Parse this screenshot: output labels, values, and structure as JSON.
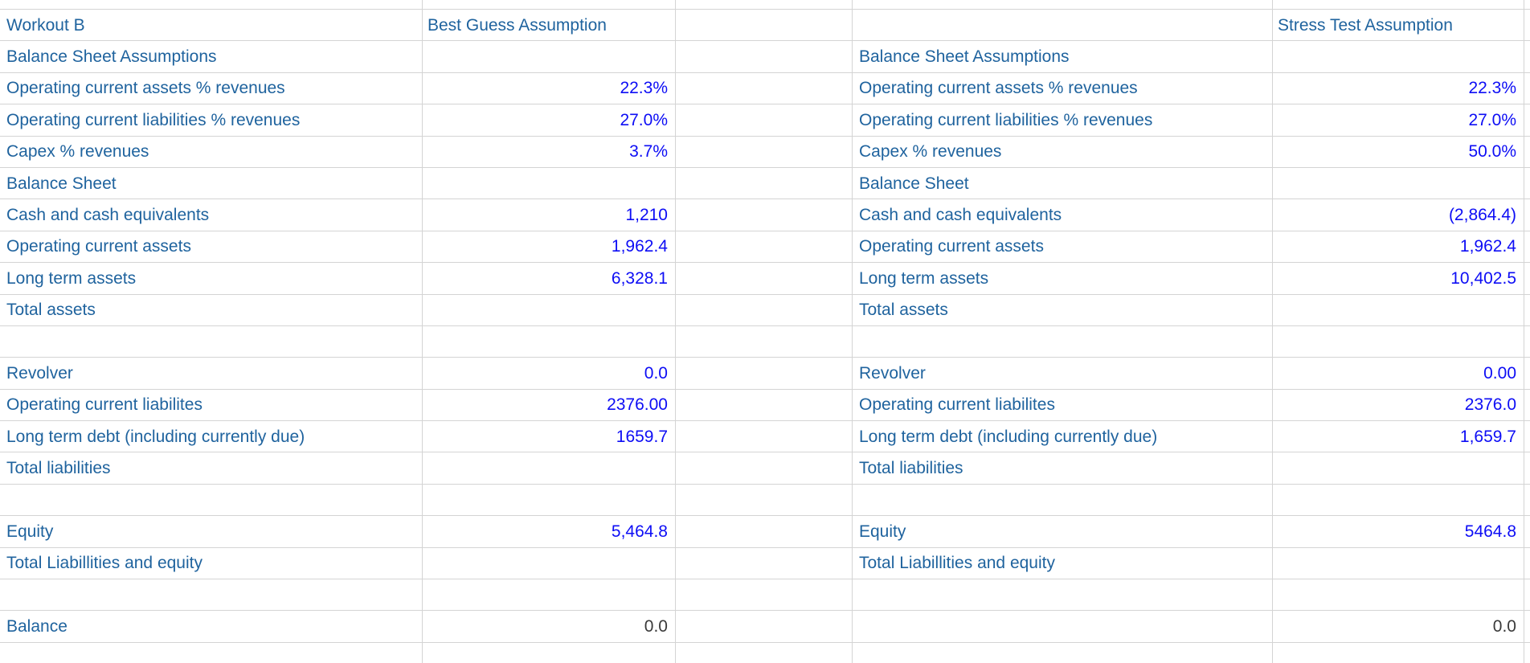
{
  "app": {
    "type": "spreadsheet-balance-sheet-model"
  },
  "colors": {
    "label_blue": "#1f639e",
    "value_blue": "#0d0df5",
    "value_black": "#3a3a3a",
    "gridline": "#d4d4d4",
    "background": "#ffffff"
  },
  "left_section": {
    "title": "Workout B",
    "scenario_header": "Best Guess Assumption"
  },
  "right_section": {
    "title": "",
    "scenario_header": "Stress Test Assumption"
  },
  "rows": [
    {
      "header": true,
      "left_label": "Workout B",
      "left_value": "Best Guess Assumption",
      "right_label": "",
      "right_value": "Stress Test Assumption"
    },
    {
      "left_label": "Balance Sheet Assumptions",
      "left_value": "",
      "right_label": "Balance Sheet Assumptions",
      "right_value": ""
    },
    {
      "left_label": "Operating current assets % revenues",
      "left_value": "22.3%",
      "right_label": "Operating current assets % revenues",
      "right_value": "22.3%"
    },
    {
      "left_label": "Operating current liabilities % revenues",
      "left_value": "27.0%",
      "right_label": "Operating current liabilities % revenues",
      "right_value": "27.0%"
    },
    {
      "left_label": "Capex % revenues",
      "left_value": "3.7%",
      "right_label": "Capex % revenues",
      "right_value": "50.0%"
    },
    {
      "left_label": "Balance Sheet",
      "left_value": "",
      "right_label": "Balance Sheet",
      "right_value": ""
    },
    {
      "left_label": "Cash and cash equivalents",
      "left_value": "1,210",
      "right_label": "Cash and cash equivalents",
      "right_value": "(2,864.4)"
    },
    {
      "left_label": "Operating current assets",
      "left_value": "1,962.4",
      "right_label": "Operating current assets",
      "right_value": "1,962.4"
    },
    {
      "left_label": "Long term assets",
      "left_value": "6,328.1",
      "right_label": "Long term assets",
      "right_value": "10,402.5"
    },
    {
      "left_label": "Total assets",
      "left_value": "",
      "right_label": "Total assets",
      "right_value": ""
    },
    {
      "left_label": "",
      "left_value": "",
      "right_label": "",
      "right_value": ""
    },
    {
      "left_label": "Revolver",
      "left_value": "0.0",
      "right_label": "Revolver",
      "right_value": "0.00"
    },
    {
      "left_label": "Operating current liabilites",
      "left_value": "2376.00",
      "right_label": "Operating current liabilites",
      "right_value": "2376.0"
    },
    {
      "left_label": "Long term debt (including currently due)",
      "left_value": "1659.7",
      "right_label": "Long term debt (including currently due)",
      "right_value": "1,659.7"
    },
    {
      "left_label": "Total liabilities",
      "left_value": "",
      "right_label": "Total liabilities",
      "right_value": ""
    },
    {
      "left_label": "",
      "left_value": "",
      "right_label": "",
      "right_value": ""
    },
    {
      "left_label": "Equity",
      "left_value": "5,464.8",
      "right_label": "Equity",
      "right_value": "5464.8"
    },
    {
      "left_label": "Total Liabillities and equity",
      "left_value": "",
      "right_label": "Total Liabillities and equity",
      "right_value": ""
    },
    {
      "left_label": "",
      "left_value": "",
      "right_label": "",
      "right_value": ""
    },
    {
      "left_label": "Balance",
      "left_value": "0.0",
      "left_value_black": true,
      "right_label": "",
      "right_value": "0.0",
      "right_value_black": true
    }
  ]
}
